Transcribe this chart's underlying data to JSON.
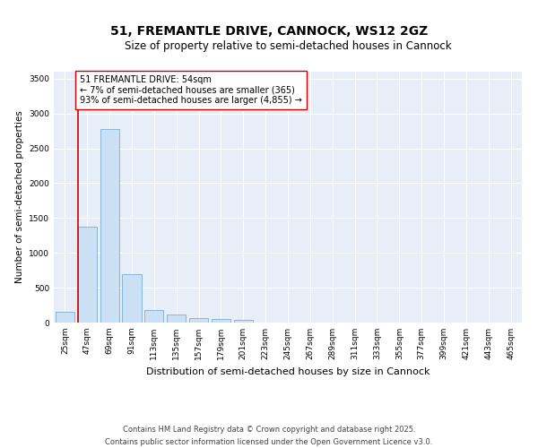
{
  "title1": "51, FREMANTLE DRIVE, CANNOCK, WS12 2GZ",
  "title2": "Size of property relative to semi-detached houses in Cannock",
  "xlabel": "Distribution of semi-detached houses by size in Cannock",
  "ylabel": "Number of semi-detached properties",
  "categories": [
    "25sqm",
    "47sqm",
    "69sqm",
    "91sqm",
    "113sqm",
    "135sqm",
    "157sqm",
    "179sqm",
    "201sqm",
    "223sqm",
    "245sqm",
    "267sqm",
    "289sqm",
    "311sqm",
    "333sqm",
    "355sqm",
    "377sqm",
    "399sqm",
    "421sqm",
    "443sqm",
    "465sqm"
  ],
  "values": [
    150,
    1380,
    2780,
    700,
    175,
    110,
    70,
    50,
    35,
    5,
    2,
    1,
    0,
    0,
    0,
    0,
    0,
    0,
    0,
    0,
    0
  ],
  "bar_color": "#cce0f5",
  "bar_edge_color": "#7bafd4",
  "vline_color": "#cc0000",
  "annotation_text": "51 FREMANTLE DRIVE: 54sqm\n← 7% of semi-detached houses are smaller (365)\n93% of semi-detached houses are larger (4,855) →",
  "annotation_box_color": "#ffffff",
  "annotation_box_edge_color": "#cc0000",
  "ylim": [
    0,
    3600
  ],
  "yticks": [
    0,
    500,
    1000,
    1500,
    2000,
    2500,
    3000,
    3500
  ],
  "background_color": "#e8eef8",
  "footer": "Contains HM Land Registry data © Crown copyright and database right 2025.\nContains public sector information licensed under the Open Government Licence v3.0.",
  "title1_fontsize": 10,
  "title2_fontsize": 8.5,
  "xlabel_fontsize": 8,
  "ylabel_fontsize": 7.5,
  "tick_fontsize": 6.5,
  "annotation_fontsize": 7,
  "footer_fontsize": 6
}
